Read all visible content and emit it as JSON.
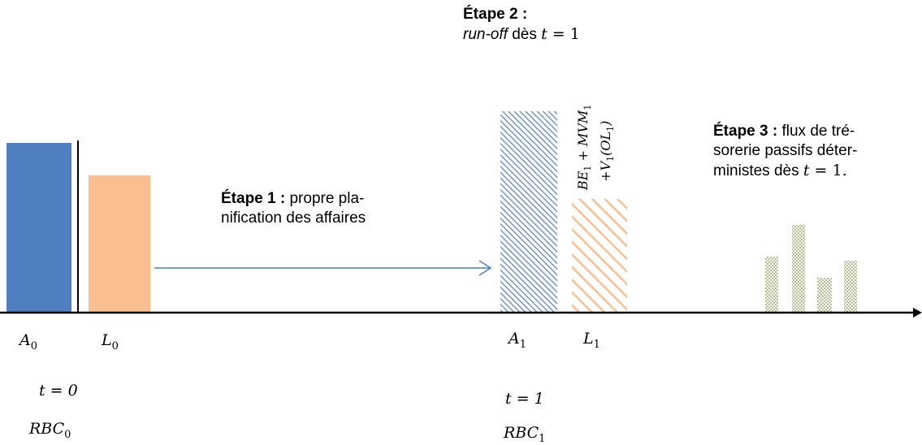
{
  "colors": {
    "asset": "#4f7fc0",
    "liability": "#f9bf91",
    "arrow": "#4f7fc0",
    "cashflow": "#7a9a3c",
    "axis": "#000000"
  },
  "step1": {
    "title": "Étape 1 :",
    "line1": " propre pla-",
    "line2": "nification des affaires"
  },
  "step2": {
    "title": "Étape 2 :",
    "runoff": "run-off",
    "rest": " dès ",
    "t": "t",
    "eq": " = 1"
  },
  "step3": {
    "title": "Étape 3 :",
    "line1": " flux de tré-",
    "line2": "sorerie passifs déter-",
    "line3_text": "ministes dès ",
    "t": "t",
    "eq": " = 1."
  },
  "labels": {
    "a0_base": "A",
    "a0_sub": "0",
    "l0_base": "L",
    "l0_sub": "0",
    "a1_base": "A",
    "a1_sub": "1",
    "l1_base": "L",
    "l1_sub": "1",
    "t0": "t = 0",
    "rbc0_base": "RBC",
    "rbc0_sub": "0",
    "t1": "t = 1",
    "rbc1_base": "RBC",
    "rbc1_sub": "1"
  },
  "liability_formula": {
    "line1_be": "BE",
    "line1_be_sub": "1",
    "line1_plus": " + MVM",
    "line1_mvm_sub": "1",
    "line2_plus": "+V",
    "line2_v_sub": "1",
    "line2_ol": "(OL",
    "line2_ol_sub": "1",
    "line2_close": ")"
  }
}
